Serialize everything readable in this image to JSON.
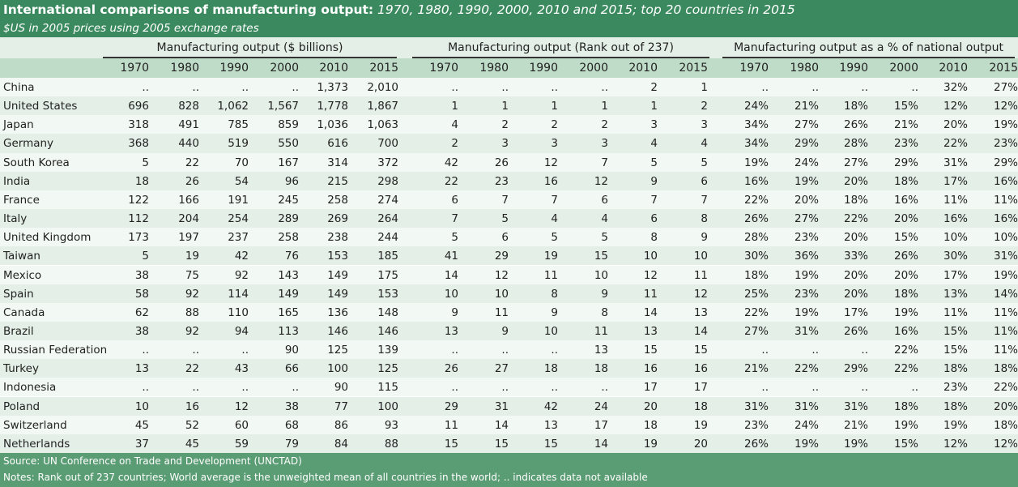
{
  "title": {
    "bold": "International comparisons of manufacturing output:",
    "italic": "1970, 1980, 1990, 2000, 2010 and 2015; top 20 countries in 2015",
    "subtitle": "$US in 2005 prices using 2005 exchange rates"
  },
  "groups": [
    "Manufacturing output ($ billions)",
    "Manufacturing output (Rank out of 237)",
    "Manufacturing output as a % of national output"
  ],
  "years": [
    "1970",
    "1980",
    "1990",
    "2000",
    "2010",
    "2015"
  ],
  "rows": [
    {
      "country": "China",
      "output": [
        "..",
        "..",
        "..",
        "..",
        "1,373",
        "2,010"
      ],
      "rank": [
        "..",
        "..",
        "..",
        "..",
        "2",
        "1"
      ],
      "pct": [
        "..",
        "..",
        "..",
        "..",
        "32%",
        "27%"
      ]
    },
    {
      "country": "United States",
      "output": [
        "696",
        "828",
        "1,062",
        "1,567",
        "1,778",
        "1,867"
      ],
      "rank": [
        "1",
        "1",
        "1",
        "1",
        "1",
        "2"
      ],
      "pct": [
        "24%",
        "21%",
        "18%",
        "15%",
        "12%",
        "12%"
      ]
    },
    {
      "country": "Japan",
      "output": [
        "318",
        "491",
        "785",
        "859",
        "1,036",
        "1,063"
      ],
      "rank": [
        "4",
        "2",
        "2",
        "2",
        "3",
        "3"
      ],
      "pct": [
        "34%",
        "27%",
        "26%",
        "21%",
        "20%",
        "19%"
      ]
    },
    {
      "country": "Germany",
      "output": [
        "368",
        "440",
        "519",
        "550",
        "616",
        "700"
      ],
      "rank": [
        "2",
        "3",
        "3",
        "3",
        "4",
        "4"
      ],
      "pct": [
        "34%",
        "29%",
        "28%",
        "23%",
        "22%",
        "23%"
      ]
    },
    {
      "country": "South Korea",
      "output": [
        "5",
        "22",
        "70",
        "167",
        "314",
        "372"
      ],
      "rank": [
        "42",
        "26",
        "12",
        "7",
        "5",
        "5"
      ],
      "pct": [
        "19%",
        "24%",
        "27%",
        "29%",
        "31%",
        "29%"
      ]
    },
    {
      "country": "India",
      "output": [
        "18",
        "26",
        "54",
        "96",
        "215",
        "298"
      ],
      "rank": [
        "22",
        "23",
        "16",
        "12",
        "9",
        "6"
      ],
      "pct": [
        "16%",
        "19%",
        "20%",
        "18%",
        "17%",
        "16%"
      ]
    },
    {
      "country": "France",
      "output": [
        "122",
        "166",
        "191",
        "245",
        "258",
        "274"
      ],
      "rank": [
        "6",
        "7",
        "7",
        "6",
        "7",
        "7"
      ],
      "pct": [
        "22%",
        "20%",
        "18%",
        "16%",
        "11%",
        "11%"
      ]
    },
    {
      "country": "Italy",
      "output": [
        "112",
        "204",
        "254",
        "289",
        "269",
        "264"
      ],
      "rank": [
        "7",
        "5",
        "4",
        "4",
        "6",
        "8"
      ],
      "pct": [
        "26%",
        "27%",
        "22%",
        "20%",
        "16%",
        "16%"
      ]
    },
    {
      "country": "United Kingdom",
      "output": [
        "173",
        "197",
        "237",
        "258",
        "238",
        "244"
      ],
      "rank": [
        "5",
        "6",
        "5",
        "5",
        "8",
        "9"
      ],
      "pct": [
        "28%",
        "23%",
        "20%",
        "15%",
        "10%",
        "10%"
      ]
    },
    {
      "country": "Taiwan",
      "output": [
        "5",
        "19",
        "42",
        "76",
        "153",
        "185"
      ],
      "rank": [
        "41",
        "29",
        "19",
        "15",
        "10",
        "10"
      ],
      "pct": [
        "30%",
        "36%",
        "33%",
        "26%",
        "30%",
        "31%"
      ]
    },
    {
      "country": "Mexico",
      "output": [
        "38",
        "75",
        "92",
        "143",
        "149",
        "175"
      ],
      "rank": [
        "14",
        "12",
        "11",
        "10",
        "12",
        "11"
      ],
      "pct": [
        "18%",
        "19%",
        "20%",
        "20%",
        "17%",
        "19%"
      ]
    },
    {
      "country": "Spain",
      "output": [
        "58",
        "92",
        "114",
        "149",
        "149",
        "153"
      ],
      "rank": [
        "10",
        "10",
        "8",
        "9",
        "11",
        "12"
      ],
      "pct": [
        "25%",
        "23%",
        "20%",
        "18%",
        "13%",
        "14%"
      ]
    },
    {
      "country": "Canada",
      "output": [
        "62",
        "88",
        "110",
        "165",
        "136",
        "148"
      ],
      "rank": [
        "9",
        "11",
        "9",
        "8",
        "14",
        "13"
      ],
      "pct": [
        "22%",
        "19%",
        "17%",
        "19%",
        "11%",
        "11%"
      ]
    },
    {
      "country": "Brazil",
      "output": [
        "38",
        "92",
        "94",
        "113",
        "146",
        "146"
      ],
      "rank": [
        "13",
        "9",
        "10",
        "11",
        "13",
        "14"
      ],
      "pct": [
        "27%",
        "31%",
        "26%",
        "16%",
        "15%",
        "11%"
      ]
    },
    {
      "country": "Russian Federation",
      "output": [
        "..",
        "..",
        "..",
        "90",
        "125",
        "139"
      ],
      "rank": [
        "..",
        "..",
        "..",
        "13",
        "15",
        "15"
      ],
      "pct": [
        "..",
        "..",
        "..",
        "22%",
        "15%",
        "11%"
      ]
    },
    {
      "country": "Turkey",
      "output": [
        "13",
        "22",
        "43",
        "66",
        "100",
        "125"
      ],
      "rank": [
        "26",
        "27",
        "18",
        "18",
        "16",
        "16"
      ],
      "pct": [
        "21%",
        "22%",
        "29%",
        "22%",
        "18%",
        "18%"
      ]
    },
    {
      "country": "Indonesia",
      "output": [
        "..",
        "..",
        "..",
        "..",
        "90",
        "115"
      ],
      "rank": [
        "..",
        "..",
        "..",
        "..",
        "17",
        "17"
      ],
      "pct": [
        "..",
        "..",
        "..",
        "..",
        "23%",
        "22%"
      ]
    },
    {
      "country": "Poland",
      "output": [
        "10",
        "16",
        "12",
        "38",
        "77",
        "100"
      ],
      "rank": [
        "29",
        "31",
        "42",
        "24",
        "20",
        "18"
      ],
      "pct": [
        "31%",
        "31%",
        "31%",
        "18%",
        "18%",
        "20%"
      ]
    },
    {
      "country": "Switzerland",
      "output": [
        "45",
        "52",
        "60",
        "68",
        "86",
        "93"
      ],
      "rank": [
        "11",
        "14",
        "13",
        "17",
        "18",
        "19"
      ],
      "pct": [
        "23%",
        "24%",
        "21%",
        "19%",
        "19%",
        "18%"
      ]
    },
    {
      "country": "Netherlands",
      "output": [
        "37",
        "45",
        "59",
        "79",
        "84",
        "88"
      ],
      "rank": [
        "15",
        "15",
        "15",
        "14",
        "19",
        "20"
      ],
      "pct": [
        "26%",
        "19%",
        "19%",
        "15%",
        "12%",
        "12%"
      ]
    }
  ],
  "footer": {
    "source": "Source: UN Conference on Trade and Development (UNCTAD)",
    "notes": "Notes: Rank out of 237 countries; World average is the unweighted mean of all countries in the world;  .. indicates data not available"
  }
}
